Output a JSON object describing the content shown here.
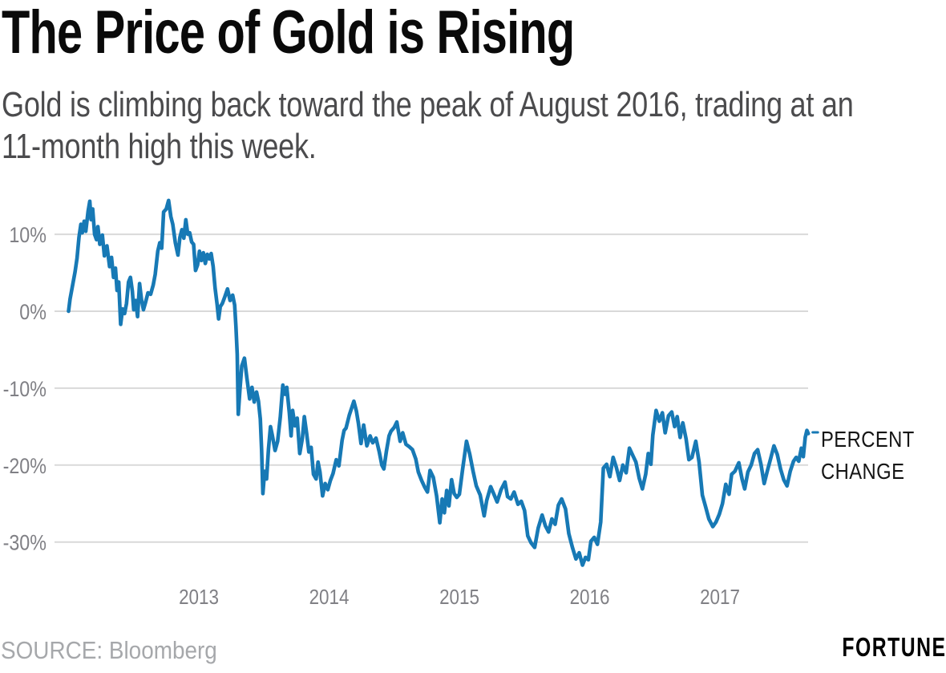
{
  "header": {
    "title": "The Price of Gold is Rising",
    "subtitle": "Gold is climbing back toward the peak of August 2016, trading at an 11-month high this week.",
    "subtitle_lines": [
      "Gold is climbing back toward the peak of August 2016, trading at an",
      "11-month high this week."
    ]
  },
  "footer": {
    "source": "SOURCE: Bloomberg",
    "brand": "FORTUNE"
  },
  "chart_data": {
    "type": "line",
    "title": "The Price of Gold is Rising",
    "xlabel": "",
    "ylabel": "",
    "series_label": "PERCENT CHANGE",
    "grid": true,
    "legend_position": "right-of-line-end",
    "line_color": "#1779b5",
    "grid_color": "#d9d9d9",
    "tick_color": "#808085",
    "x_domain": [
      2012.0,
      2017.75
    ],
    "y_domain": [
      -34,
      15.5
    ],
    "yticks": [
      {
        "value": 10,
        "label": "10%"
      },
      {
        "value": 0,
        "label": "0%"
      },
      {
        "value": -10,
        "label": "-10%"
      },
      {
        "value": -20,
        "label": "-20%"
      },
      {
        "value": -30,
        "label": "-30%"
      }
    ],
    "xticks": [
      {
        "value": 2013,
        "label": "2013"
      },
      {
        "value": 2014,
        "label": "2014"
      },
      {
        "value": 2015,
        "label": "2015"
      },
      {
        "value": 2016,
        "label": "2016"
      },
      {
        "value": 2017,
        "label": "2017"
      }
    ],
    "end_marker": true,
    "series": [
      {
        "name": "PERCENT CHANGE",
        "points": [
          [
            2012.0,
            0.0
          ],
          [
            2012.012,
            1.6
          ],
          [
            2012.03,
            3.3
          ],
          [
            2012.05,
            5.1
          ],
          [
            2012.065,
            6.9
          ],
          [
            2012.08,
            9.6
          ],
          [
            2012.095,
            11.3
          ],
          [
            2012.105,
            10.2
          ],
          [
            2012.12,
            11.7
          ],
          [
            2012.132,
            10.4
          ],
          [
            2012.15,
            13.0
          ],
          [
            2012.163,
            14.3
          ],
          [
            2012.173,
            11.9
          ],
          [
            2012.185,
            13.3
          ],
          [
            2012.2,
            10.0
          ],
          [
            2012.215,
            9.3
          ],
          [
            2012.225,
            11.0
          ],
          [
            2012.24,
            8.7
          ],
          [
            2012.26,
            9.9
          ],
          [
            2012.275,
            7.2
          ],
          [
            2012.295,
            8.5
          ],
          [
            2012.315,
            5.8
          ],
          [
            2012.33,
            7.0
          ],
          [
            2012.345,
            4.4
          ],
          [
            2012.36,
            5.6
          ],
          [
            2012.372,
            2.7
          ],
          [
            2012.385,
            3.8
          ],
          [
            2012.4,
            -1.7
          ],
          [
            2012.415,
            0.3
          ],
          [
            2012.43,
            -0.3
          ],
          [
            2012.445,
            1.0
          ],
          [
            2012.46,
            3.8
          ],
          [
            2012.475,
            4.4
          ],
          [
            2012.49,
            2.6
          ],
          [
            2012.5,
            0.2
          ],
          [
            2012.515,
            1.4
          ],
          [
            2012.53,
            -0.7
          ],
          [
            2012.545,
            3.6
          ],
          [
            2012.56,
            1.5
          ],
          [
            2012.575,
            0.2
          ],
          [
            2012.59,
            1.1
          ],
          [
            2012.61,
            2.4
          ],
          [
            2012.63,
            2.2
          ],
          [
            2012.65,
            3.4
          ],
          [
            2012.665,
            4.8
          ],
          [
            2012.685,
            7.8
          ],
          [
            2012.7,
            8.9
          ],
          [
            2012.715,
            8.2
          ],
          [
            2012.73,
            12.9
          ],
          [
            2012.75,
            13.3
          ],
          [
            2012.768,
            14.4
          ],
          [
            2012.785,
            12.3
          ],
          [
            2012.8,
            11.3
          ],
          [
            2012.82,
            8.9
          ],
          [
            2012.84,
            7.3
          ],
          [
            2012.855,
            9.6
          ],
          [
            2012.87,
            10.6
          ],
          [
            2012.885,
            9.5
          ],
          [
            2012.9,
            11.9
          ],
          [
            2012.915,
            10.0
          ],
          [
            2012.93,
            10.2
          ],
          [
            2012.945,
            9.0
          ],
          [
            2012.96,
            8.7
          ],
          [
            2012.975,
            5.3
          ],
          [
            2012.99,
            6.0
          ],
          [
            2013.005,
            7.8
          ],
          [
            2013.02,
            6.6
          ],
          [
            2013.035,
            7.6
          ],
          [
            2013.05,
            6.2
          ],
          [
            2013.065,
            7.4
          ],
          [
            2013.08,
            6.8
          ],
          [
            2013.095,
            7.5
          ],
          [
            2013.11,
            5.8
          ],
          [
            2013.125,
            3.0
          ],
          [
            2013.14,
            0.9
          ],
          [
            2013.152,
            -1.0
          ],
          [
            2013.165,
            0.6
          ],
          [
            2013.18,
            1.0
          ],
          [
            2013.2,
            1.9
          ],
          [
            2013.22,
            2.9
          ],
          [
            2013.24,
            1.4
          ],
          [
            2013.26,
            2.1
          ],
          [
            2013.275,
            0.8
          ],
          [
            2013.285,
            -2.0
          ],
          [
            2013.295,
            -5.6
          ],
          [
            2013.303,
            -13.4
          ],
          [
            2013.315,
            -10.3
          ],
          [
            2013.33,
            -7.1
          ],
          [
            2013.35,
            -6.1
          ],
          [
            2013.37,
            -8.8
          ],
          [
            2013.39,
            -11.4
          ],
          [
            2013.408,
            -9.9
          ],
          [
            2013.425,
            -11.8
          ],
          [
            2013.443,
            -10.5
          ],
          [
            2013.458,
            -11.7
          ],
          [
            2013.472,
            -14.0
          ],
          [
            2013.482,
            -18.0
          ],
          [
            2013.492,
            -23.7
          ],
          [
            2013.505,
            -20.8
          ],
          [
            2013.52,
            -21.8
          ],
          [
            2013.535,
            -17.9
          ],
          [
            2013.55,
            -15.0
          ],
          [
            2013.565,
            -16.2
          ],
          [
            2013.585,
            -18.1
          ],
          [
            2013.605,
            -16.9
          ],
          [
            2013.625,
            -13.8
          ],
          [
            2013.645,
            -9.6
          ],
          [
            2013.66,
            -10.8
          ],
          [
            2013.675,
            -9.9
          ],
          [
            2013.695,
            -13.2
          ],
          [
            2013.708,
            -16.2
          ],
          [
            2013.72,
            -12.9
          ],
          [
            2013.738,
            -14.9
          ],
          [
            2013.755,
            -13.9
          ],
          [
            2013.775,
            -18.5
          ],
          [
            2013.795,
            -16.5
          ],
          [
            2013.81,
            -13.7
          ],
          [
            2013.828,
            -15.9
          ],
          [
            2013.845,
            -18.3
          ],
          [
            2013.862,
            -17.7
          ],
          [
            2013.88,
            -21.2
          ],
          [
            2013.9,
            -21.8
          ],
          [
            2013.915,
            -19.6
          ],
          [
            2013.93,
            -20.9
          ],
          [
            2013.95,
            -24.0
          ],
          [
            2013.97,
            -22.4
          ],
          [
            2013.99,
            -23.2
          ],
          [
            2014.01,
            -22.0
          ],
          [
            2014.03,
            -21.1
          ],
          [
            2014.055,
            -19.3
          ],
          [
            2014.075,
            -20.1
          ],
          [
            2014.1,
            -16.8
          ],
          [
            2014.115,
            -15.5
          ],
          [
            2014.13,
            -15.2
          ],
          [
            2014.155,
            -13.5
          ],
          [
            2014.19,
            -11.7
          ],
          [
            2014.21,
            -13.0
          ],
          [
            2014.225,
            -14.6
          ],
          [
            2014.245,
            -17.2
          ],
          [
            2014.265,
            -14.8
          ],
          [
            2014.29,
            -17.5
          ],
          [
            2014.315,
            -16.2
          ],
          [
            2014.335,
            -17.1
          ],
          [
            2014.36,
            -16.5
          ],
          [
            2014.385,
            -18.3
          ],
          [
            2014.405,
            -20.0
          ],
          [
            2014.42,
            -20.5
          ],
          [
            2014.44,
            -18.2
          ],
          [
            2014.46,
            -16.2
          ],
          [
            2014.475,
            -15.6
          ],
          [
            2014.5,
            -15.1
          ],
          [
            2014.52,
            -14.4
          ],
          [
            2014.545,
            -16.9
          ],
          [
            2014.565,
            -15.8
          ],
          [
            2014.59,
            -17.3
          ],
          [
            2014.615,
            -17.6
          ],
          [
            2014.64,
            -18.0
          ],
          [
            2014.665,
            -19.2
          ],
          [
            2014.685,
            -20.9
          ],
          [
            2014.71,
            -22.0
          ],
          [
            2014.735,
            -22.9
          ],
          [
            2014.755,
            -23.5
          ],
          [
            2014.775,
            -20.7
          ],
          [
            2014.8,
            -21.6
          ],
          [
            2014.825,
            -24.0
          ],
          [
            2014.85,
            -27.5
          ],
          [
            2014.868,
            -24.4
          ],
          [
            2014.885,
            -26.2
          ],
          [
            2014.903,
            -23.3
          ],
          [
            2014.92,
            -25.3
          ],
          [
            2014.94,
            -21.9
          ],
          [
            2014.96,
            -23.7
          ],
          [
            2014.98,
            -24.2
          ],
          [
            2015.0,
            -23.8
          ],
          [
            2015.025,
            -20.5
          ],
          [
            2015.055,
            -16.9
          ],
          [
            2015.08,
            -18.6
          ],
          [
            2015.105,
            -20.8
          ],
          [
            2015.13,
            -22.7
          ],
          [
            2015.16,
            -23.9
          ],
          [
            2015.19,
            -26.6
          ],
          [
            2015.21,
            -24.6
          ],
          [
            2015.24,
            -22.8
          ],
          [
            2015.265,
            -23.8
          ],
          [
            2015.29,
            -24.8
          ],
          [
            2015.32,
            -23.2
          ],
          [
            2015.35,
            -22.2
          ],
          [
            2015.37,
            -24.1
          ],
          [
            2015.395,
            -24.4
          ],
          [
            2015.42,
            -23.5
          ],
          [
            2015.45,
            -25.1
          ],
          [
            2015.475,
            -24.7
          ],
          [
            2015.5,
            -25.9
          ],
          [
            2015.525,
            -29.2
          ],
          [
            2015.55,
            -30.1
          ],
          [
            2015.578,
            -30.7
          ],
          [
            2015.605,
            -28.2
          ],
          [
            2015.635,
            -26.5
          ],
          [
            2015.66,
            -27.9
          ],
          [
            2015.685,
            -28.7
          ],
          [
            2015.71,
            -27.0
          ],
          [
            2015.735,
            -27.7
          ],
          [
            2015.76,
            -25.2
          ],
          [
            2015.785,
            -24.4
          ],
          [
            2015.815,
            -25.7
          ],
          [
            2015.84,
            -28.9
          ],
          [
            2015.868,
            -30.7
          ],
          [
            2015.895,
            -32.2
          ],
          [
            2015.92,
            -31.4
          ],
          [
            2015.945,
            -33.0
          ],
          [
            2015.968,
            -32.0
          ],
          [
            2015.99,
            -32.3
          ],
          [
            2016.01,
            -29.9
          ],
          [
            2016.035,
            -29.4
          ],
          [
            2016.06,
            -30.3
          ],
          [
            2016.085,
            -27.4
          ],
          [
            2016.105,
            -20.4
          ],
          [
            2016.13,
            -19.9
          ],
          [
            2016.155,
            -21.5
          ],
          [
            2016.18,
            -19.0
          ],
          [
            2016.205,
            -20.3
          ],
          [
            2016.23,
            -22.0
          ],
          [
            2016.255,
            -20.0
          ],
          [
            2016.28,
            -21.0
          ],
          [
            2016.305,
            -17.8
          ],
          [
            2016.33,
            -18.7
          ],
          [
            2016.355,
            -19.6
          ],
          [
            2016.38,
            -21.7
          ],
          [
            2016.405,
            -23.1
          ],
          [
            2016.43,
            -21.2
          ],
          [
            2016.45,
            -18.5
          ],
          [
            2016.47,
            -19.9
          ],
          [
            2016.485,
            -16.1
          ],
          [
            2016.51,
            -12.9
          ],
          [
            2016.535,
            -14.3
          ],
          [
            2016.558,
            -13.2
          ],
          [
            2016.58,
            -15.8
          ],
          [
            2016.605,
            -13.6
          ],
          [
            2016.63,
            -13.1
          ],
          [
            2016.652,
            -15.0
          ],
          [
            2016.672,
            -13.7
          ],
          [
            2016.695,
            -16.4
          ],
          [
            2016.715,
            -14.5
          ],
          [
            2016.74,
            -16.6
          ],
          [
            2016.762,
            -19.3
          ],
          [
            2016.785,
            -19.0
          ],
          [
            2016.815,
            -16.9
          ],
          [
            2016.84,
            -19.6
          ],
          [
            2016.865,
            -23.9
          ],
          [
            2016.89,
            -25.4
          ],
          [
            2016.915,
            -27.0
          ],
          [
            2016.945,
            -28.0
          ],
          [
            2016.97,
            -27.4
          ],
          [
            2016.995,
            -26.4
          ],
          [
            2017.02,
            -25.0
          ],
          [
            2017.045,
            -22.5
          ],
          [
            2017.07,
            -23.8
          ],
          [
            2017.09,
            -21.2
          ],
          [
            2017.115,
            -20.8
          ],
          [
            2017.145,
            -19.7
          ],
          [
            2017.17,
            -21.8
          ],
          [
            2017.19,
            -23.1
          ],
          [
            2017.215,
            -20.9
          ],
          [
            2017.24,
            -20.0
          ],
          [
            2017.265,
            -18.5
          ],
          [
            2017.29,
            -18.0
          ],
          [
            2017.315,
            -19.9
          ],
          [
            2017.34,
            -22.4
          ],
          [
            2017.365,
            -20.7
          ],
          [
            2017.39,
            -19.1
          ],
          [
            2017.415,
            -17.5
          ],
          [
            2017.44,
            -18.6
          ],
          [
            2017.465,
            -20.5
          ],
          [
            2017.49,
            -21.9
          ],
          [
            2017.515,
            -22.7
          ],
          [
            2017.54,
            -20.8
          ],
          [
            2017.565,
            -19.5
          ],
          [
            2017.585,
            -19.0
          ],
          [
            2017.605,
            -19.5
          ],
          [
            2017.625,
            -17.8
          ],
          [
            2017.64,
            -18.9
          ],
          [
            2017.655,
            -16.4
          ],
          [
            2017.668,
            -15.5
          ],
          [
            2017.678,
            -15.9
          ]
        ]
      }
    ]
  }
}
